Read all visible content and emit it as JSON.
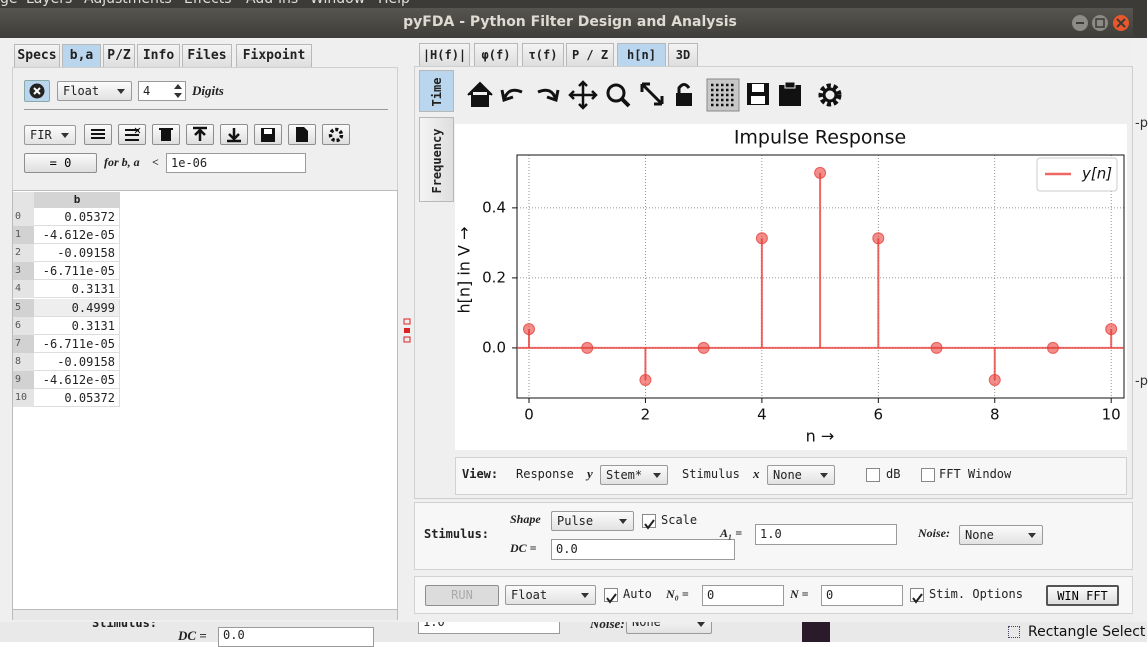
{
  "background": {
    "menu": [
      "ge",
      "Layers",
      "Adjustments",
      "Effects",
      "Add-ins",
      "Window",
      "Help"
    ],
    "side_labels": [
      "-p",
      "-p"
    ],
    "status": "Rectangle Select",
    "behind": [
      "Stimulus:",
      "DC =",
      "0.0",
      "1.0",
      "Noise:",
      "None"
    ]
  },
  "window": {
    "title": "pyFDA - Python Filter Design and Analysis"
  },
  "left_panel": {
    "tabs": [
      "Specs",
      "b,a",
      "P/Z",
      "Info",
      "Files",
      "Fixpoint"
    ],
    "active_tab": 1,
    "format": "Float",
    "digits": "4",
    "digits_label": "Digits",
    "filter_type": "FIR",
    "zero_button": "= 0",
    "threshold_label": "for b, a",
    "threshold_op": "<",
    "threshold": "1e-06",
    "table": {
      "header": "b",
      "rows": [
        [
          "0",
          "0.05372"
        ],
        [
          "1",
          "-4.612e-05"
        ],
        [
          "2",
          "-0.09158"
        ],
        [
          "3",
          "-6.711e-05"
        ],
        [
          "4",
          "0.3131"
        ],
        [
          "5",
          "0.4999"
        ],
        [
          "6",
          "0.3131"
        ],
        [
          "7",
          "-6.711e-05"
        ],
        [
          "8",
          "-0.09158"
        ],
        [
          "9",
          "-4.612e-05"
        ],
        [
          "10",
          "0.05372"
        ]
      ]
    }
  },
  "right_panel": {
    "tabs": [
      "|H(f)|",
      "φ(f)",
      "τ(f)",
      "P / Z",
      "h[n]",
      "3D"
    ],
    "active_tab": 4,
    "side_tabs": [
      "Time",
      "Frequency"
    ],
    "active_side_tab": 0,
    "view": {
      "label": "View:",
      "response": "Response",
      "response_var": "y",
      "response_mode": "Stem*",
      "stimulus": "Stimulus",
      "stimulus_var": "x",
      "stimulus_mode": "None",
      "db": "dB",
      "fft_window": "FFT Window"
    },
    "stimulus": {
      "label": "Stimulus:",
      "shape_label": "Shape",
      "shape": "Pulse",
      "scale": "Scale",
      "dc_label": "DC =",
      "dc": "0.0",
      "amp_label": "A₁ =",
      "amp": "1.0",
      "noise_label": "Noise:",
      "noise": "None"
    },
    "run_bar": {
      "run": "RUN",
      "format": "Float",
      "auto": "Auto",
      "n0_label": "N₀ =",
      "n0": "0",
      "n_label": "N =",
      "n": "0",
      "stim_options": "Stim. Options",
      "win_fft": "WIN FFT"
    }
  },
  "chart_data": {
    "type": "stem",
    "title": "Impulse Response",
    "x_label": "n →",
    "y_label": "h[n] in V →",
    "x": [
      0,
      1,
      2,
      3,
      4,
      5,
      6,
      7,
      8,
      9,
      10
    ],
    "series": [
      {
        "name": "y[n]",
        "color": "#e8413c",
        "values": [
          0.0537,
          0,
          -0.0916,
          0,
          0.3131,
          0.4999,
          0.3131,
          0,
          -0.0916,
          0,
          0.0537
        ]
      }
    ],
    "xlim": [
      -0.206,
      10.22
    ],
    "ylim": [
      -0.143,
      0.551
    ],
    "xticks": [
      0,
      2,
      4,
      6,
      8,
      10
    ],
    "yticks": [
      {
        "value": 0,
        "label": "0.0"
      },
      {
        "value": 0.2,
        "label": "0.2"
      },
      {
        "value": 0.4,
        "label": "0.4"
      }
    ],
    "grid": true,
    "legend": "upper right"
  }
}
